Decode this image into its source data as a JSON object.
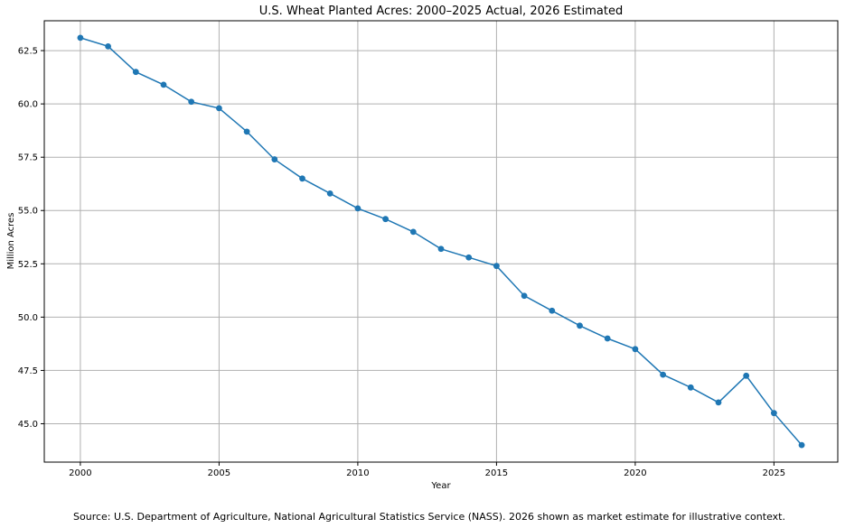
{
  "chart_data": {
    "type": "line",
    "title": "U.S. Wheat Planted Acres: 2000–2025 Actual, 2026 Estimated",
    "xlabel": "Year",
    "ylabel": "Million Acres",
    "xlim": [
      1998.7,
      2027.3
    ],
    "ylim": [
      43.2,
      63.9
    ],
    "xticks": [
      2000,
      2005,
      2010,
      2015,
      2020,
      2025
    ],
    "xtick_labels": [
      "2000",
      "2005",
      "2010",
      "2015",
      "2020",
      "2025"
    ],
    "yticks": [
      45.0,
      47.5,
      50.0,
      52.5,
      55.0,
      57.5,
      60.0,
      62.5
    ],
    "ytick_labels": [
      "45.0",
      "47.5",
      "50.0",
      "52.5",
      "55.0",
      "57.5",
      "60.0",
      "62.5"
    ],
    "grid": true,
    "series": [
      {
        "name": "Planted acres",
        "color": "#1f77b4",
        "x": [
          2000,
          2001,
          2002,
          2003,
          2004,
          2005,
          2006,
          2007,
          2008,
          2009,
          2010,
          2011,
          2012,
          2013,
          2014,
          2015,
          2016,
          2017,
          2018,
          2019,
          2020,
          2021,
          2022,
          2023,
          2024,
          2025,
          2026
        ],
        "values": [
          63.1,
          62.7,
          61.5,
          60.9,
          60.1,
          59.8,
          58.7,
          57.4,
          56.5,
          55.8,
          55.1,
          54.6,
          54.0,
          53.2,
          52.8,
          52.4,
          51.0,
          50.3,
          49.6,
          49.0,
          48.5,
          47.3,
          46.7,
          46.0,
          47.25,
          45.5,
          44.0
        ]
      }
    ],
    "source_note": "Source: U.S. Department of Agriculture, National Agricultural Statistics Service (NASS). 2026 shown as market estimate for illustrative context."
  }
}
